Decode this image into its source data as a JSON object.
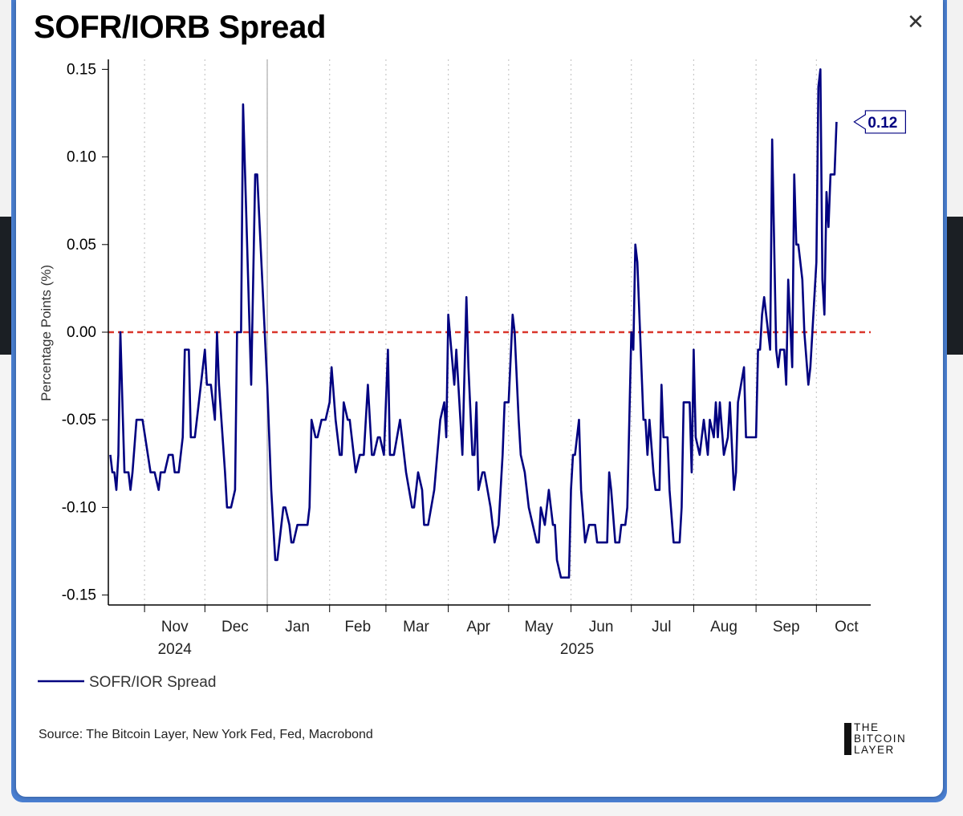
{
  "chart_data": {
    "type": "line",
    "title": "SOFR/IORB Spread",
    "ylabel": "Percentage Points (%)",
    "ylim": [
      -0.155,
      0.155
    ],
    "yticks": [
      0.15,
      0.1,
      0.05,
      0.0,
      -0.05,
      -0.1,
      -0.15
    ],
    "ytick_labels": [
      "0.15",
      "0.10",
      "0.05",
      "0.00",
      "-0.05",
      "-0.10",
      "-0.15"
    ],
    "x_range": [
      "2024-10-14",
      "2025-10-28"
    ],
    "month_labels": [
      {
        "label": "Nov",
        "date": "2024-11-16"
      },
      {
        "label": "Dec",
        "date": "2024-12-16"
      },
      {
        "label": "Jan",
        "date": "2025-01-16"
      },
      {
        "label": "Feb",
        "date": "2025-02-15"
      },
      {
        "label": "Mar",
        "date": "2025-03-16"
      },
      {
        "label": "Apr",
        "date": "2025-04-16"
      },
      {
        "label": "May",
        "date": "2025-05-16"
      },
      {
        "label": "Jun",
        "date": "2025-06-16"
      },
      {
        "label": "Jul",
        "date": "2025-07-16"
      },
      {
        "label": "Aug",
        "date": "2025-08-16"
      },
      {
        "label": "Sep",
        "date": "2025-09-16"
      },
      {
        "label": "Oct",
        "date": "2025-10-16"
      }
    ],
    "year_labels": [
      {
        "label": "2024",
        "date": "2024-11-16"
      },
      {
        "label": "2025",
        "date": "2025-06-04"
      }
    ],
    "reference_line": {
      "y": 0.0,
      "color": "#d9352a",
      "style": "dashed"
    },
    "highlight_line": {
      "date": "2025-01-01"
    },
    "grid": "vertical-dotted-monthly",
    "series": [
      {
        "name": "SOFR/IOR Spread",
        "color": "#000080",
        "points": [
          [
            "2024-10-15",
            -0.07
          ],
          [
            "2024-10-16",
            -0.08
          ],
          [
            "2024-10-17",
            -0.08
          ],
          [
            "2024-10-18",
            -0.09
          ],
          [
            "2024-10-19",
            -0.07
          ],
          [
            "2024-10-20",
            0.0
          ],
          [
            "2024-10-21",
            -0.04
          ],
          [
            "2024-10-22",
            -0.08
          ],
          [
            "2024-10-24",
            -0.08
          ],
          [
            "2024-10-25",
            -0.09
          ],
          [
            "2024-10-26",
            -0.08
          ],
          [
            "2024-10-28",
            -0.05
          ],
          [
            "2024-10-31",
            -0.05
          ],
          [
            "2024-11-04",
            -0.08
          ],
          [
            "2024-11-06",
            -0.08
          ],
          [
            "2024-11-08",
            -0.09
          ],
          [
            "2024-11-09",
            -0.08
          ],
          [
            "2024-11-11",
            -0.08
          ],
          [
            "2024-11-13",
            -0.07
          ],
          [
            "2024-11-15",
            -0.07
          ],
          [
            "2024-11-16",
            -0.08
          ],
          [
            "2024-11-18",
            -0.08
          ],
          [
            "2024-11-20",
            -0.06
          ],
          [
            "2024-11-21",
            -0.01
          ],
          [
            "2024-11-23",
            -0.01
          ],
          [
            "2024-11-24",
            -0.06
          ],
          [
            "2024-11-26",
            -0.06
          ],
          [
            "2024-11-27",
            -0.05
          ],
          [
            "2024-11-30",
            -0.02
          ],
          [
            "2024-12-01",
            -0.01
          ],
          [
            "2024-12-02",
            -0.03
          ],
          [
            "2024-12-04",
            -0.03
          ],
          [
            "2024-12-06",
            -0.05
          ],
          [
            "2024-12-07",
            0.0
          ],
          [
            "2024-12-08",
            -0.03
          ],
          [
            "2024-12-11",
            -0.08
          ],
          [
            "2024-12-12",
            -0.1
          ],
          [
            "2024-12-14",
            -0.1
          ],
          [
            "2024-12-16",
            -0.09
          ],
          [
            "2024-12-17",
            0.0
          ],
          [
            "2024-12-19",
            0.0
          ],
          [
            "2024-12-20",
            0.13
          ],
          [
            "2024-12-24",
            -0.03
          ],
          [
            "2024-12-26",
            0.09
          ],
          [
            "2024-12-27",
            0.09
          ],
          [
            "2025-01-01",
            -0.03
          ],
          [
            "2025-01-03",
            -0.09
          ],
          [
            "2025-01-05",
            -0.13
          ],
          [
            "2025-01-06",
            -0.13
          ],
          [
            "2025-01-08",
            -0.11
          ],
          [
            "2025-01-09",
            -0.1
          ],
          [
            "2025-01-10",
            -0.1
          ],
          [
            "2025-01-12",
            -0.11
          ],
          [
            "2025-01-13",
            -0.12
          ],
          [
            "2025-01-14",
            -0.12
          ],
          [
            "2025-01-16",
            -0.11
          ],
          [
            "2025-01-19",
            -0.11
          ],
          [
            "2025-01-21",
            -0.11
          ],
          [
            "2025-01-22",
            -0.1
          ],
          [
            "2025-01-23",
            -0.05
          ],
          [
            "2025-01-25",
            -0.06
          ],
          [
            "2025-01-26",
            -0.06
          ],
          [
            "2025-01-28",
            -0.05
          ],
          [
            "2025-01-30",
            -0.05
          ],
          [
            "2025-02-01",
            -0.04
          ],
          [
            "2025-02-02",
            -0.02
          ],
          [
            "2025-02-04",
            -0.05
          ],
          [
            "2025-02-06",
            -0.07
          ],
          [
            "2025-02-07",
            -0.07
          ],
          [
            "2025-02-08",
            -0.04
          ],
          [
            "2025-02-10",
            -0.05
          ],
          [
            "2025-02-11",
            -0.05
          ],
          [
            "2025-02-13",
            -0.07
          ],
          [
            "2025-02-14",
            -0.08
          ],
          [
            "2025-02-16",
            -0.07
          ],
          [
            "2025-02-18",
            -0.07
          ],
          [
            "2025-02-20",
            -0.03
          ],
          [
            "2025-02-22",
            -0.07
          ],
          [
            "2025-02-23",
            -0.07
          ],
          [
            "2025-02-25",
            -0.06
          ],
          [
            "2025-02-26",
            -0.06
          ],
          [
            "2025-02-28",
            -0.07
          ],
          [
            "2025-03-02",
            -0.01
          ],
          [
            "2025-03-03",
            -0.07
          ],
          [
            "2025-03-05",
            -0.07
          ],
          [
            "2025-03-08",
            -0.05
          ],
          [
            "2025-03-11",
            -0.08
          ],
          [
            "2025-03-14",
            -0.1
          ],
          [
            "2025-03-15",
            -0.1
          ],
          [
            "2025-03-17",
            -0.08
          ],
          [
            "2025-03-19",
            -0.09
          ],
          [
            "2025-03-20",
            -0.11
          ],
          [
            "2025-03-22",
            -0.11
          ],
          [
            "2025-03-25",
            -0.09
          ],
          [
            "2025-03-28",
            -0.05
          ],
          [
            "2025-03-30",
            -0.04
          ],
          [
            "2025-03-31",
            -0.06
          ],
          [
            "2025-04-01",
            0.01
          ],
          [
            "2025-04-04",
            -0.03
          ],
          [
            "2025-04-05",
            -0.01
          ],
          [
            "2025-04-07",
            -0.05
          ],
          [
            "2025-04-08",
            -0.07
          ],
          [
            "2025-04-10",
            0.02
          ],
          [
            "2025-04-11",
            -0.02
          ],
          [
            "2025-04-13",
            -0.07
          ],
          [
            "2025-04-14",
            -0.07
          ],
          [
            "2025-04-15",
            -0.04
          ],
          [
            "2025-04-16",
            -0.09
          ],
          [
            "2025-04-18",
            -0.08
          ],
          [
            "2025-04-19",
            -0.08
          ],
          [
            "2025-04-22",
            -0.1
          ],
          [
            "2025-04-24",
            -0.12
          ],
          [
            "2025-04-26",
            -0.11
          ],
          [
            "2025-04-28",
            -0.07
          ],
          [
            "2025-04-29",
            -0.04
          ],
          [
            "2025-05-01",
            -0.04
          ],
          [
            "2025-05-03",
            0.01
          ],
          [
            "2025-05-04",
            0.0
          ],
          [
            "2025-05-06",
            -0.05
          ],
          [
            "2025-05-07",
            -0.07
          ],
          [
            "2025-05-09",
            -0.08
          ],
          [
            "2025-05-11",
            -0.1
          ],
          [
            "2025-05-13",
            -0.11
          ],
          [
            "2025-05-15",
            -0.12
          ],
          [
            "2025-05-16",
            -0.12
          ],
          [
            "2025-05-17",
            -0.1
          ],
          [
            "2025-05-19",
            -0.11
          ],
          [
            "2025-05-21",
            -0.09
          ],
          [
            "2025-05-23",
            -0.11
          ],
          [
            "2025-05-24",
            -0.11
          ],
          [
            "2025-05-25",
            -0.13
          ],
          [
            "2025-05-27",
            -0.14
          ],
          [
            "2025-05-31",
            -0.14
          ],
          [
            "2025-06-01",
            -0.09
          ],
          [
            "2025-06-02",
            -0.07
          ],
          [
            "2025-06-03",
            -0.07
          ],
          [
            "2025-06-05",
            -0.05
          ],
          [
            "2025-06-06",
            -0.09
          ],
          [
            "2025-06-08",
            -0.12
          ],
          [
            "2025-06-10",
            -0.11
          ],
          [
            "2025-06-13",
            -0.11
          ],
          [
            "2025-06-14",
            -0.12
          ],
          [
            "2025-06-19",
            -0.12
          ],
          [
            "2025-06-20",
            -0.08
          ],
          [
            "2025-06-21",
            -0.09
          ],
          [
            "2025-06-23",
            -0.12
          ],
          [
            "2025-06-25",
            -0.12
          ],
          [
            "2025-06-26",
            -0.11
          ],
          [
            "2025-06-28",
            -0.11
          ],
          [
            "2025-06-29",
            -0.1
          ],
          [
            "2025-06-30",
            -0.05
          ],
          [
            "2025-07-01",
            0.0
          ],
          [
            "2025-07-02",
            -0.01
          ],
          [
            "2025-07-03",
            0.05
          ],
          [
            "2025-07-04",
            0.04
          ],
          [
            "2025-07-07",
            -0.05
          ],
          [
            "2025-07-08",
            -0.05
          ],
          [
            "2025-07-09",
            -0.07
          ],
          [
            "2025-07-10",
            -0.05
          ],
          [
            "2025-07-12",
            -0.08
          ],
          [
            "2025-07-13",
            -0.09
          ],
          [
            "2025-07-15",
            -0.09
          ],
          [
            "2025-07-16",
            -0.03
          ],
          [
            "2025-07-17",
            -0.06
          ],
          [
            "2025-07-19",
            -0.06
          ],
          [
            "2025-07-20",
            -0.09
          ],
          [
            "2025-07-22",
            -0.12
          ],
          [
            "2025-07-25",
            -0.12
          ],
          [
            "2025-07-26",
            -0.1
          ],
          [
            "2025-07-27",
            -0.04
          ],
          [
            "2025-07-30",
            -0.04
          ],
          [
            "2025-07-31",
            -0.08
          ],
          [
            "2025-08-01",
            -0.01
          ],
          [
            "2025-08-02",
            -0.06
          ],
          [
            "2025-08-04",
            -0.07
          ],
          [
            "2025-08-06",
            -0.05
          ],
          [
            "2025-08-08",
            -0.07
          ],
          [
            "2025-08-09",
            -0.05
          ],
          [
            "2025-08-11",
            -0.06
          ],
          [
            "2025-08-12",
            -0.04
          ],
          [
            "2025-08-13",
            -0.06
          ],
          [
            "2025-08-14",
            -0.04
          ],
          [
            "2025-08-16",
            -0.07
          ],
          [
            "2025-08-18",
            -0.06
          ],
          [
            "2025-08-19",
            -0.04
          ],
          [
            "2025-08-21",
            -0.09
          ],
          [
            "2025-08-22",
            -0.08
          ],
          [
            "2025-08-23",
            -0.04
          ],
          [
            "2025-08-26",
            -0.02
          ],
          [
            "2025-08-27",
            -0.06
          ],
          [
            "2025-09-01",
            -0.06
          ],
          [
            "2025-09-02",
            -0.01
          ],
          [
            "2025-09-03",
            -0.01
          ],
          [
            "2025-09-04",
            0.01
          ],
          [
            "2025-09-05",
            0.02
          ],
          [
            "2025-09-07",
            0.0
          ],
          [
            "2025-09-08",
            -0.01
          ],
          [
            "2025-09-09",
            0.11
          ],
          [
            "2025-09-11",
            -0.01
          ],
          [
            "2025-09-12",
            -0.02
          ],
          [
            "2025-09-13",
            -0.01
          ],
          [
            "2025-09-15",
            -0.01
          ],
          [
            "2025-09-16",
            -0.03
          ],
          [
            "2025-09-17",
            0.03
          ],
          [
            "2025-09-19",
            -0.02
          ],
          [
            "2025-09-20",
            0.09
          ],
          [
            "2025-09-21",
            0.05
          ],
          [
            "2025-09-22",
            0.05
          ],
          [
            "2025-09-24",
            0.03
          ],
          [
            "2025-09-25",
            0.0
          ],
          [
            "2025-09-27",
            -0.03
          ],
          [
            "2025-09-28",
            -0.02
          ],
          [
            "2025-09-29",
            0.0
          ],
          [
            "2025-10-01",
            0.04
          ],
          [
            "2025-10-02",
            0.14
          ],
          [
            "2025-10-03",
            0.15
          ],
          [
            "2025-10-04",
            0.03
          ],
          [
            "2025-10-05",
            0.01
          ],
          [
            "2025-10-06",
            0.08
          ],
          [
            "2025-10-07",
            0.06
          ],
          [
            "2025-10-08",
            0.09
          ],
          [
            "2025-10-10",
            0.09
          ],
          [
            "2025-10-11",
            0.12
          ]
        ]
      }
    ],
    "last_value": {
      "label": "0.12",
      "value": 0.12
    },
    "legend": {
      "position": "bottom-left",
      "label": "SOFR/IOR Spread"
    }
  },
  "source_text": "Source: The Bitcoin Layer, New York Fed, Fed, Macrobond",
  "logo": {
    "lines": [
      "THE",
      "BITCOIN",
      "LAYER"
    ]
  },
  "close_icon": "close-icon",
  "close_glyph": "✕"
}
